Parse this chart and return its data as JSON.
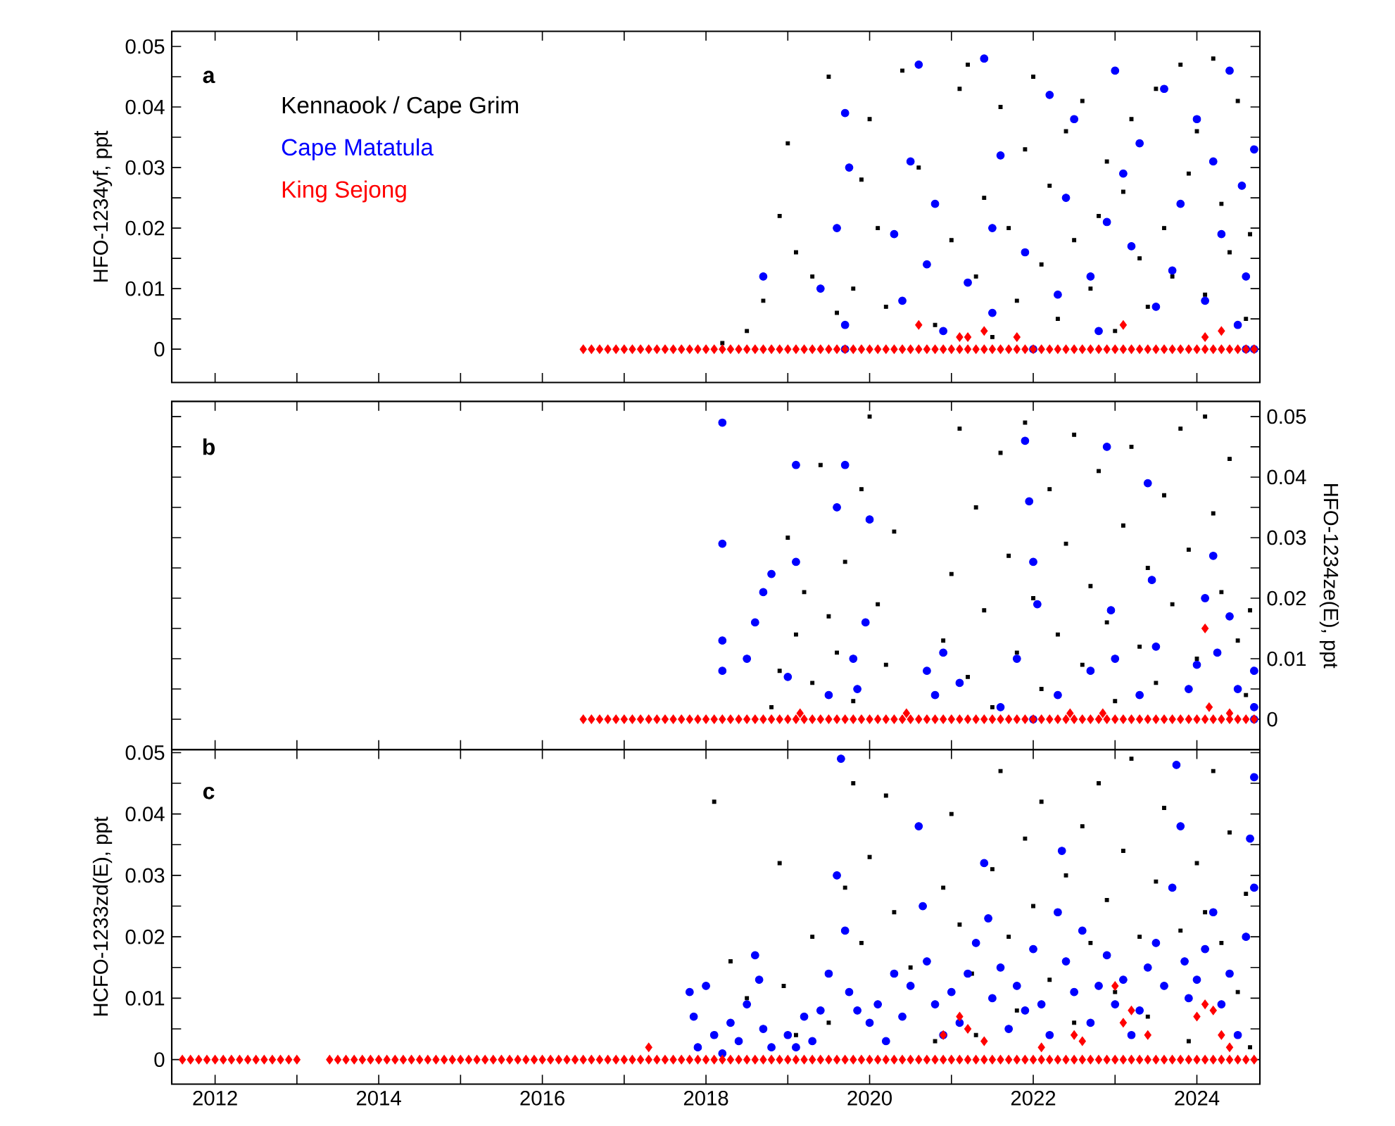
{
  "chart_data": [
    {
      "type": "scatter",
      "ylabel": "HFO-1234yf, ppt",
      "annotations": [
        "a"
      ],
      "legend": "top left",
      "tick_labels": "y",
      "xlim": [
        2011.47,
        2024.77
      ],
      "ylim": [
        -0.0055,
        0.0525
      ],
      "xticks": [
        2012,
        {
          "value": 2013,
          "label": null
        },
        2014,
        {
          "value": 2015,
          "label": null
        },
        2016,
        {
          "value": 2017,
          "label": null
        },
        2018,
        {
          "value": 2019,
          "label": null
        },
        2020,
        {
          "value": 2021,
          "label": null
        },
        2022,
        {
          "value": 2023,
          "label": null
        },
        2024
      ],
      "yticks": [
        0,
        {
          "value": 0.005,
          "label": null
        },
        0.01,
        {
          "value": 0.015,
          "label": null
        },
        0.02,
        {
          "value": 0.025,
          "label": null
        },
        0.03,
        {
          "value": 0.035,
          "label": null
        },
        0.04,
        {
          "value": 0.045,
          "label": null
        },
        0.05
      ],
      "series": [
        {
          "name": "Kennaook / Cape Grim",
          "color": "#000000",
          "marker": "square",
          "x": [
            2018.2,
            2018.5,
            2018.7,
            2018.9,
            2019.0,
            2019.1,
            2019.3,
            2019.5,
            2019.6,
            2019.8,
            2019.9,
            2020.0,
            2020.1,
            2020.2,
            2020.4,
            2020.6,
            2020.8,
            2021.0,
            2021.1,
            2021.2,
            2021.3,
            2021.4,
            2021.5,
            2021.6,
            2021.7,
            2021.8,
            2021.9,
            2022.0,
            2022.1,
            2022.2,
            2022.3,
            2022.4,
            2022.5,
            2022.6,
            2022.7,
            2022.8,
            2022.9,
            2023.0,
            2023.1,
            2023.2,
            2023.3,
            2023.4,
            2023.5,
            2023.6,
            2023.7,
            2023.8,
            2023.9,
            2024.0,
            2024.1,
            2024.2,
            2024.3,
            2024.4,
            2024.5,
            2024.6,
            2024.65
          ],
          "values": [
            0.001,
            0.003,
            0.008,
            0.022,
            0.034,
            0.016,
            0.012,
            0.045,
            0.006,
            0.01,
            0.028,
            0.038,
            0.02,
            0.007,
            0.046,
            0.03,
            0.004,
            0.018,
            0.043,
            0.047,
            0.012,
            0.025,
            0.002,
            0.04,
            0.02,
            0.008,
            0.033,
            0.045,
            0.014,
            0.027,
            0.005,
            0.036,
            0.018,
            0.041,
            0.01,
            0.022,
            0.031,
            0.003,
            0.026,
            0.038,
            0.015,
            0.007,
            0.043,
            0.02,
            0.012,
            0.047,
            0.029,
            0.036,
            0.009,
            0.048,
            0.024,
            0.016,
            0.041,
            0.005,
            0.019
          ]
        },
        {
          "name": "Cape Matatula",
          "color": "#0000ff",
          "marker": "circle",
          "x": [
            2018.7,
            2019.4,
            2019.6,
            2019.7,
            2019.75,
            2019.7,
            2019.7,
            2020.3,
            2020.4,
            2020.5,
            2020.6,
            2020.7,
            2020.8,
            2020.9,
            2021.2,
            2021.4,
            2021.5,
            2021.5,
            2021.6,
            2021.9,
            2022.0,
            2022.2,
            2022.3,
            2022.4,
            2022.5,
            2022.7,
            2022.8,
            2022.9,
            2023.0,
            2023.1,
            2023.2,
            2023.3,
            2023.5,
            2023.6,
            2023.7,
            2023.8,
            2024.0,
            2024.1,
            2024.2,
            2024.3,
            2024.4,
            2024.5,
            2024.55,
            2024.6,
            2024.6,
            2024.7,
            2024.7
          ],
          "values": [
            0.012,
            0.01,
            0.02,
            0.039,
            0.03,
            0.004,
            0,
            0.019,
            0.008,
            0.031,
            0.047,
            0.014,
            0.024,
            0.003,
            0.011,
            0.048,
            0.02,
            0.006,
            0.032,
            0.016,
            0,
            0.042,
            0.009,
            0.025,
            0.038,
            0.012,
            0.003,
            0.021,
            0.046,
            0.029,
            0.017,
            0.034,
            0.007,
            0.043,
            0.013,
            0.024,
            0.038,
            0.008,
            0.031,
            0.019,
            0.046,
            0.004,
            0.027,
            0.012,
            0,
            0.033,
            0
          ]
        },
        {
          "name": "King Sejong",
          "color": "#ff0000",
          "marker": "diamond",
          "x": [
            2016.5,
            2016.6,
            2016.7,
            2016.8,
            2016.9,
            2017.0,
            2017.1,
            2017.2,
            2017.3,
            2017.4,
            2017.5,
            2017.6,
            2017.7,
            2017.8,
            2017.9,
            2018.0,
            2018.1,
            2018.2,
            2018.3,
            2018.4,
            2018.5,
            2018.6,
            2018.7,
            2018.8,
            2018.9,
            2019.0,
            2019.1,
            2019.2,
            2019.3,
            2019.4,
            2019.5,
            2019.6,
            2019.7,
            2019.8,
            2019.9,
            2020.0,
            2020.1,
            2020.2,
            2020.3,
            2020.4,
            2020.5,
            2020.6,
            2020.7,
            2020.8,
            2020.9,
            2021.0,
            2021.1,
            2021.2,
            2021.3,
            2021.4,
            2021.5,
            2021.6,
            2021.7,
            2021.8,
            2021.9,
            2022.0,
            2022.1,
            2022.2,
            2022.3,
            2022.4,
            2022.5,
            2022.6,
            2022.7,
            2022.8,
            2022.9,
            2023.0,
            2023.1,
            2023.2,
            2023.3,
            2023.4,
            2023.5,
            2023.6,
            2023.7,
            2023.8,
            2023.9,
            2024.0,
            2024.1,
            2024.2,
            2024.3,
            2024.4,
            2024.5,
            2024.6,
            2024.7,
            2020.6,
            2021.1,
            2021.2,
            2021.4,
            2021.8,
            2023.1,
            2024.1,
            2024.3
          ],
          "values": [
            0,
            0,
            0,
            0,
            0,
            0,
            0,
            0,
            0,
            0,
            0,
            0,
            0,
            0,
            0,
            0,
            0,
            0,
            0,
            0,
            0,
            0,
            0,
            0,
            0,
            0,
            0,
            0,
            0,
            0,
            0,
            0,
            0,
            0,
            0,
            0,
            0,
            0,
            0,
            0,
            0,
            0,
            0,
            0,
            0,
            0,
            0,
            0,
            0,
            0,
            0,
            0,
            0,
            0,
            0,
            0,
            0,
            0,
            0,
            0,
            0,
            0,
            0,
            0,
            0,
            0,
            0,
            0,
            0,
            0,
            0,
            0,
            0,
            0,
            0,
            0,
            0,
            0,
            0,
            0,
            0,
            0,
            0,
            0.004,
            0.002,
            0.002,
            0.003,
            0.002,
            0.004,
            0.002,
            0.003
          ]
        }
      ]
    },
    {
      "type": "scatter",
      "y2label": "HFO-1234ze(E), ppt",
      "annotations": [
        "b"
      ],
      "tick_labels": "y",
      "xlim": [
        2011.47,
        2024.77
      ],
      "y2lim": [
        -0.005,
        0.0525
      ],
      "xticks": [
        2012,
        {
          "value": 2013,
          "label": null
        },
        2014,
        {
          "value": 2015,
          "label": null
        },
        2016,
        {
          "value": 2017,
          "label": null
        },
        2018,
        {
          "value": 2019,
          "label": null
        },
        2020,
        {
          "value": 2021,
          "label": null
        },
        2022,
        {
          "value": 2023,
          "label": null
        },
        2024
      ],
      "y2ticks": [
        0,
        {
          "value": 0.005,
          "label": null
        },
        0.01,
        {
          "value": 0.015,
          "label": null
        },
        0.02,
        {
          "value": 0.025,
          "label": null
        },
        0.03,
        {
          "value": 0.035,
          "label": null
        },
        0.04,
        {
          "value": 0.045,
          "label": null
        },
        0.05
      ],
      "series": [
        {
          "color": "#000000",
          "marker": "square",
          "axis": "y2",
          "x": [
            2018.8,
            2018.9,
            2019.0,
            2019.1,
            2019.2,
            2019.3,
            2019.4,
            2019.5,
            2019.6,
            2019.7,
            2019.8,
            2019.9,
            2020.0,
            2020.1,
            2020.2,
            2020.3,
            2020.9,
            2021.0,
            2021.1,
            2021.2,
            2021.3,
            2021.4,
            2021.5,
            2021.6,
            2021.7,
            2021.8,
            2021.9,
            2022.0,
            2022.1,
            2022.2,
            2022.3,
            2022.4,
            2022.5,
            2022.6,
            2022.7,
            2022.8,
            2022.9,
            2023.0,
            2023.1,
            2023.2,
            2023.3,
            2023.4,
            2023.5,
            2023.6,
            2023.7,
            2023.8,
            2023.9,
            2024.0,
            2024.1,
            2024.2,
            2024.3,
            2024.4,
            2024.5,
            2024.6,
            2024.65
          ],
          "values": [
            0.002,
            0.008,
            0.03,
            0.014,
            0.021,
            0.006,
            0.042,
            0.017,
            0.011,
            0.026,
            0.003,
            0.038,
            0.05,
            0.019,
            0.009,
            0.031,
            0.013,
            0.024,
            0.048,
            0.007,
            0.035,
            0.018,
            0.002,
            0.044,
            0.027,
            0.011,
            0.049,
            0.02,
            0.005,
            0.038,
            0.014,
            0.029,
            0.047,
            0.009,
            0.022,
            0.041,
            0.016,
            0.003,
            0.032,
            0.045,
            0.012,
            0.025,
            0.006,
            0.037,
            0.019,
            0.048,
            0.028,
            0.01,
            0.05,
            0.034,
            0.021,
            0.043,
            0.013,
            0.004,
            0.018
          ]
        },
        {
          "color": "#0000ff",
          "marker": "circle",
          "axis": "y2",
          "x": [
            2018.2,
            2018.2,
            2018.2,
            2018.2,
            2018.5,
            2018.6,
            2018.7,
            2018.8,
            2019.0,
            2019.1,
            2019.1,
            2019.5,
            2019.6,
            2019.7,
            2019.8,
            2019.85,
            2019.95,
            2020.0,
            2020.7,
            2020.8,
            2020.9,
            2021.1,
            2021.6,
            2021.8,
            2021.9,
            2021.95,
            2022.0,
            2022.05,
            2022.3,
            2022.7,
            2022.9,
            2022.95,
            2023.0,
            2023.3,
            2023.4,
            2023.45,
            2023.5,
            2023.9,
            2024.0,
            2024.1,
            2024.2,
            2024.25,
            2024.4,
            2024.5,
            2024.7,
            2024.7,
            2024.7,
            2022.0
          ],
          "values": [
            0.049,
            0.029,
            0.013,
            0.008,
            0.01,
            0.016,
            0.021,
            0.024,
            0.007,
            0.042,
            0.026,
            0.004,
            0.035,
            0.042,
            0.01,
            0.005,
            0.016,
            0.033,
            0.008,
            0.004,
            0.011,
            0.006,
            0.002,
            0.01,
            0.046,
            0.036,
            0.026,
            0.019,
            0.004,
            0.008,
            0.045,
            0.018,
            0.01,
            0.004,
            0.039,
            0.023,
            0.012,
            0.005,
            0.009,
            0.02,
            0.027,
            0.011,
            0.017,
            0.005,
            0.008,
            0.002,
            0,
            0
          ]
        },
        {
          "color": "#ff0000",
          "marker": "diamond",
          "axis": "y2",
          "x": [
            2016.5,
            2016.6,
            2016.7,
            2016.8,
            2016.9,
            2017.0,
            2017.1,
            2017.2,
            2017.3,
            2017.4,
            2017.5,
            2017.6,
            2017.7,
            2017.8,
            2017.9,
            2018.0,
            2018.1,
            2018.2,
            2018.3,
            2018.4,
            2018.5,
            2018.6,
            2018.7,
            2018.8,
            2018.9,
            2019.0,
            2019.1,
            2019.2,
            2019.3,
            2019.4,
            2019.5,
            2019.6,
            2019.7,
            2019.8,
            2019.9,
            2020.0,
            2020.1,
            2020.2,
            2020.3,
            2020.4,
            2020.5,
            2020.6,
            2020.7,
            2020.8,
            2020.9,
            2021.0,
            2021.1,
            2021.2,
            2021.3,
            2021.4,
            2021.5,
            2021.6,
            2021.7,
            2021.8,
            2021.9,
            2022.0,
            2022.1,
            2022.2,
            2022.3,
            2022.4,
            2022.5,
            2022.6,
            2022.7,
            2022.8,
            2022.9,
            2023.0,
            2023.1,
            2023.2,
            2023.3,
            2023.4,
            2023.5,
            2023.6,
            2023.7,
            2023.8,
            2023.9,
            2024.0,
            2024.1,
            2024.2,
            2024.3,
            2024.4,
            2024.5,
            2024.6,
            2024.7,
            2019.15,
            2020.45,
            2022.45,
            2022.85,
            2024.1,
            2024.15,
            2024.4
          ],
          "values": [
            0,
            0,
            0,
            0,
            0,
            0,
            0,
            0,
            0,
            0,
            0,
            0,
            0,
            0,
            0,
            0,
            0,
            0,
            0,
            0,
            0,
            0,
            0,
            0,
            0,
            0,
            0,
            0,
            0,
            0,
            0,
            0,
            0,
            0,
            0,
            0,
            0,
            0,
            0,
            0,
            0,
            0,
            0,
            0,
            0,
            0,
            0,
            0,
            0,
            0,
            0,
            0,
            0,
            0,
            0,
            0,
            0,
            0,
            0,
            0,
            0,
            0,
            0,
            0,
            0,
            0,
            0,
            0,
            0,
            0,
            0,
            0,
            0,
            0,
            0,
            0,
            0,
            0,
            0,
            0,
            0,
            0,
            0,
            0.001,
            0.001,
            0.001,
            0.001,
            0.015,
            0.002,
            0.001
          ]
        }
      ]
    },
    {
      "type": "scatter",
      "ylabel": "HCFO-1233zd(E), ppt",
      "annotations": [
        "c"
      ],
      "xlim": [
        2011.47,
        2024.77
      ],
      "ylim": [
        -0.004,
        0.0505
      ],
      "xticks": [
        2012,
        {
          "value": 2013,
          "label": null
        },
        2014,
        {
          "value": 2015,
          "label": null
        },
        2016,
        {
          "value": 2017,
          "label": null
        },
        2018,
        {
          "value": 2019,
          "label": null
        },
        2020,
        {
          "value": 2021,
          "label": null
        },
        2022,
        {
          "value": 2023,
          "label": null
        },
        2024
      ],
      "yticks": [
        0,
        {
          "value": 0.005,
          "label": null
        },
        0.01,
        {
          "value": 0.015,
          "label": null
        },
        0.02,
        {
          "value": 0.025,
          "label": null
        },
        0.03,
        {
          "value": 0.035,
          "label": null
        },
        0.04,
        {
          "value": 0.045,
          "label": null
        },
        0.05
      ],
      "series": [
        {
          "color": "#000000",
          "marker": "square",
          "x": [
            2018.1,
            2018.3,
            2018.5,
            2018.9,
            2018.95,
            2019.1,
            2019.3,
            2019.5,
            2019.7,
            2019.8,
            2019.9,
            2020.0,
            2020.2,
            2020.3,
            2020.5,
            2020.8,
            2020.9,
            2021.0,
            2021.1,
            2021.25,
            2021.3,
            2021.5,
            2021.6,
            2021.7,
            2021.8,
            2021.9,
            2022.0,
            2022.1,
            2022.2,
            2022.4,
            2022.5,
            2022.6,
            2022.7,
            2022.8,
            2022.9,
            2023.0,
            2023.1,
            2023.2,
            2023.3,
            2023.4,
            2023.5,
            2023.6,
            2023.8,
            2023.9,
            2024.0,
            2024.1,
            2024.2,
            2024.3,
            2024.4,
            2024.5,
            2024.6,
            2024.65
          ],
          "values": [
            0.042,
            0.016,
            0.01,
            0.032,
            0.012,
            0.004,
            0.02,
            0.006,
            0.028,
            0.045,
            0.019,
            0.033,
            0.043,
            0.024,
            0.015,
            0.003,
            0.028,
            0.04,
            0.022,
            0.014,
            0.004,
            0.031,
            0.047,
            0.02,
            0.008,
            0.036,
            0.025,
            0.042,
            0.013,
            0.03,
            0.006,
            0.038,
            0.019,
            0.045,
            0.026,
            0.011,
            0.034,
            0.049,
            0.02,
            0.007,
            0.029,
            0.041,
            0.021,
            0.003,
            0.032,
            0.024,
            0.047,
            0.019,
            0.037,
            0.011,
            0.027,
            0.002
          ]
        },
        {
          "color": "#0000ff",
          "marker": "circle",
          "x": [
            2017.8,
            2017.85,
            2017.9,
            2018.0,
            2018.1,
            2018.2,
            2018.3,
            2018.4,
            2018.5,
            2018.6,
            2018.65,
            2018.7,
            2018.8,
            2019.0,
            2019.1,
            2019.2,
            2019.3,
            2019.4,
            2019.5,
            2019.6,
            2019.65,
            2019.7,
            2019.75,
            2019.85,
            2020.0,
            2020.1,
            2020.2,
            2020.3,
            2020.4,
            2020.5,
            2020.6,
            2020.65,
            2020.7,
            2020.8,
            2020.9,
            2021.0,
            2021.1,
            2021.2,
            2021.3,
            2021.4,
            2021.45,
            2021.5,
            2021.6,
            2021.7,
            2021.8,
            2021.9,
            2022.0,
            2022.1,
            2022.2,
            2022.3,
            2022.35,
            2022.4,
            2022.5,
            2022.6,
            2022.7,
            2022.8,
            2022.9,
            2023.0,
            2023.1,
            2023.2,
            2023.3,
            2023.4,
            2023.5,
            2023.6,
            2023.7,
            2023.75,
            2023.8,
            2023.85,
            2023.9,
            2024.0,
            2024.1,
            2024.2,
            2024.3,
            2024.4,
            2024.5,
            2024.6,
            2024.65,
            2024.7,
            2024.7
          ],
          "values": [
            0.011,
            0.007,
            0.002,
            0.012,
            0.004,
            0.001,
            0.006,
            0.003,
            0.009,
            0.017,
            0.013,
            0.005,
            0.002,
            0.004,
            0.002,
            0.007,
            0.003,
            0.008,
            0.014,
            0.03,
            0.049,
            0.021,
            0.011,
            0.008,
            0.006,
            0.009,
            0.003,
            0.014,
            0.007,
            0.012,
            0.038,
            0.025,
            0.016,
            0.009,
            0.004,
            0.011,
            0.006,
            0.014,
            0.019,
            0.032,
            0.023,
            0.01,
            0.015,
            0.005,
            0.012,
            0.008,
            0.018,
            0.009,
            0.004,
            0.024,
            0.034,
            0.016,
            0.011,
            0.021,
            0.006,
            0.012,
            0.017,
            0.009,
            0.013,
            0.004,
            0.008,
            0.015,
            0.019,
            0.012,
            0.028,
            0.048,
            0.038,
            0.016,
            0.01,
            0.013,
            0.018,
            0.024,
            0.009,
            0.014,
            0.004,
            0.02,
            0.036,
            0.046,
            0.028
          ]
        },
        {
          "color": "#ff0000",
          "marker": "diamond",
          "x": [
            2011.6,
            2011.7,
            2011.8,
            2011.9,
            2012.0,
            2012.1,
            2012.2,
            2012.3,
            2012.4,
            2012.5,
            2012.6,
            2012.7,
            2012.8,
            2012.9,
            2013.0,
            2013.4,
            2013.5,
            2013.6,
            2013.7,
            2013.8,
            2013.9,
            2014.0,
            2014.1,
            2014.2,
            2014.3,
            2014.4,
            2014.5,
            2014.6,
            2014.7,
            2014.8,
            2014.9,
            2015.0,
            2015.1,
            2015.2,
            2015.3,
            2015.4,
            2015.5,
            2015.6,
            2015.7,
            2015.8,
            2015.9,
            2016.0,
            2016.1,
            2016.2,
            2016.3,
            2016.4,
            2016.5,
            2016.6,
            2016.7,
            2016.8,
            2016.9,
            2017.0,
            2017.1,
            2017.2,
            2017.3,
            2017.4,
            2017.5,
            2017.6,
            2017.7,
            2017.8,
            2017.9,
            2018.0,
            2018.1,
            2018.2,
            2018.3,
            2018.4,
            2018.5,
            2018.6,
            2018.7,
            2018.8,
            2018.9,
            2019.0,
            2019.1,
            2019.2,
            2019.3,
            2019.4,
            2019.5,
            2019.6,
            2019.7,
            2019.8,
            2019.9,
            2020.0,
            2020.1,
            2020.2,
            2020.3,
            2020.4,
            2020.5,
            2020.6,
            2020.7,
            2020.8,
            2020.9,
            2021.0,
            2021.1,
            2021.2,
            2021.3,
            2021.4,
            2021.5,
            2021.6,
            2021.7,
            2021.8,
            2021.9,
            2022.0,
            2022.1,
            2022.2,
            2022.3,
            2022.4,
            2022.5,
            2022.6,
            2022.7,
            2022.8,
            2022.9,
            2023.0,
            2023.1,
            2023.2,
            2023.3,
            2023.4,
            2023.5,
            2023.6,
            2023.7,
            2023.8,
            2023.9,
            2024.0,
            2024.1,
            2024.2,
            2024.3,
            2024.4,
            2024.5,
            2024.6,
            2024.7,
            2017.3,
            2020.9,
            2021.1,
            2021.2,
            2021.4,
            2022.1,
            2022.5,
            2022.6,
            2023.0,
            2023.1,
            2023.2,
            2023.4,
            2024.0,
            2024.1,
            2024.2,
            2024.3,
            2024.4
          ],
          "values": [
            0,
            0,
            0,
            0,
            0,
            0,
            0,
            0,
            0,
            0,
            0,
            0,
            0,
            0,
            0,
            0,
            0,
            0,
            0,
            0,
            0,
            0,
            0,
            0,
            0,
            0,
            0,
            0,
            0,
            0,
            0,
            0,
            0,
            0,
            0,
            0,
            0,
            0,
            0,
            0,
            0,
            0,
            0,
            0,
            0,
            0,
            0,
            0,
            0,
            0,
            0,
            0,
            0,
            0,
            0,
            0,
            0,
            0,
            0,
            0,
            0,
            0,
            0,
            0,
            0,
            0,
            0,
            0,
            0,
            0,
            0,
            0,
            0,
            0,
            0,
            0,
            0,
            0,
            0,
            0,
            0,
            0,
            0,
            0,
            0,
            0,
            0,
            0,
            0,
            0,
            0,
            0,
            0,
            0,
            0,
            0,
            0,
            0,
            0,
            0,
            0,
            0,
            0,
            0,
            0,
            0,
            0,
            0,
            0,
            0,
            0,
            0,
            0,
            0,
            0,
            0,
            0,
            0,
            0,
            0,
            0,
            0,
            0,
            0,
            0,
            0,
            0,
            0,
            0,
            0.002,
            0.004,
            0.007,
            0.005,
            0.003,
            0.002,
            0.004,
            0.003,
            0.012,
            0.006,
            0.008,
            0.004,
            0.007,
            0.009,
            0.008,
            0.004,
            0.002
          ]
        }
      ]
    }
  ]
}
